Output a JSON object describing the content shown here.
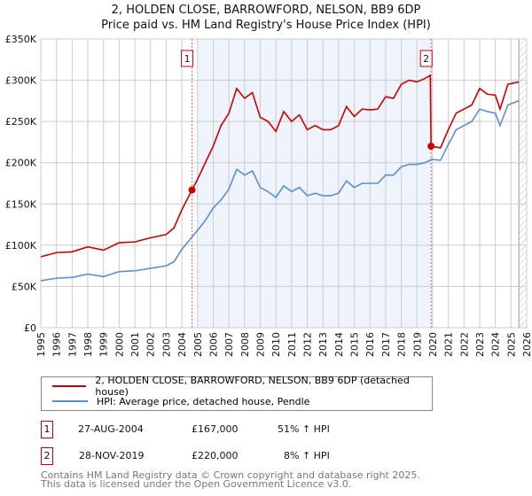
{
  "chart_data": {
    "type": "line",
    "title": "2, HOLDEN CLOSE, BARROWFORD, NELSON, BB9 6DP",
    "subtitle": "Price paid vs. HM Land Registry's House Price Index (HPI)",
    "xlabel": "",
    "ylabel": "",
    "xlim": [
      1995,
      2026
    ],
    "ylim": [
      0,
      350000
    ],
    "yticks": [
      {
        "v": 0,
        "label": "£0"
      },
      {
        "v": 50000,
        "label": "£50K"
      },
      {
        "v": 100000,
        "label": "£100K"
      },
      {
        "v": 150000,
        "label": "£150K"
      },
      {
        "v": 200000,
        "label": "£200K"
      },
      {
        "v": 250000,
        "label": "£250K"
      },
      {
        "v": 300000,
        "label": "£300K"
      },
      {
        "v": 350000,
        "label": "£350K"
      }
    ],
    "xticks": [
      "1995",
      "1996",
      "1997",
      "1998",
      "1999",
      "2000",
      "2001",
      "2002",
      "2003",
      "2004",
      "2005",
      "2006",
      "2007",
      "2008",
      "2009",
      "2010",
      "2011",
      "2012",
      "2013",
      "2014",
      "2015",
      "2016",
      "2017",
      "2018",
      "2019",
      "2020",
      "2021",
      "2022",
      "2023",
      "2024",
      "2025",
      "2026"
    ],
    "x": [
      1995,
      1996,
      1997,
      1998,
      1999,
      2000,
      2001,
      2002,
      2003,
      2003.5,
      2004,
      2004.65,
      2005,
      2005.5,
      2006,
      2006.5,
      2007,
      2007.5,
      2008,
      2008.5,
      2009,
      2009.5,
      2010,
      2010.5,
      2011,
      2011.5,
      2012,
      2012.5,
      2013,
      2013.5,
      2014,
      2014.5,
      2015,
      2015.5,
      2016,
      2016.5,
      2017,
      2017.5,
      2018,
      2018.5,
      2019,
      2019.5,
      2019.85,
      2019.9,
      2020.5,
      2021,
      2021.5,
      2022,
      2022.5,
      2023,
      2023.5,
      2024,
      2024.3,
      2024.8,
      2025.5
    ],
    "series": [
      {
        "name": "2, HOLDEN CLOSE, BARROWFORD, NELSON, BB9 6DP (detached house)",
        "color": "#cc0000",
        "values": [
          86000,
          91000,
          92000,
          98000,
          94000,
          103000,
          104000,
          109000,
          113000,
          121000,
          143000,
          167000,
          180000,
          200000,
          220000,
          245000,
          260000,
          290000,
          278000,
          285000,
          255000,
          250000,
          238000,
          262000,
          250000,
          258000,
          240000,
          245000,
          240000,
          240000,
          245000,
          268000,
          256000,
          265000,
          264000,
          265000,
          280000,
          278000,
          295000,
          300000,
          298000,
          302000,
          306000,
          220000,
          218000,
          240000,
          260000,
          265000,
          270000,
          290000,
          283000,
          282000,
          265000,
          295000,
          298000
        ]
      },
      {
        "name": "HPI: Average price, detached house, Pendle",
        "color": "#5b8fd4",
        "values": [
          57000,
          60000,
          61000,
          65000,
          62000,
          68000,
          69000,
          72000,
          75000,
          80000,
          95000,
          110000,
          118000,
          130000,
          145000,
          155000,
          168000,
          192000,
          185000,
          190000,
          170000,
          165000,
          158000,
          172000,
          165000,
          170000,
          160000,
          163000,
          160000,
          160000,
          163000,
          178000,
          170000,
          175000,
          175000,
          175000,
          185000,
          185000,
          195000,
          198000,
          198000,
          200000,
          203000,
          204000,
          203000,
          222000,
          240000,
          245000,
          250000,
          265000,
          262000,
          260000,
          245000,
          270000,
          275000
        ]
      }
    ],
    "annotations": [
      {
        "label": "1",
        "x": 2004.65,
        "y": 167000
      },
      {
        "label": "2",
        "x": 2019.9,
        "y": 220000
      }
    ],
    "shaded_range": [
      2005,
      2020
    ],
    "hatched_range": [
      2025.5,
      2026
    ],
    "grid": true,
    "legend": "bottom"
  },
  "transactions": [
    {
      "num": "1",
      "date": "27-AUG-2004",
      "price": "£167,000",
      "hpi": "51% ↑ HPI"
    },
    {
      "num": "2",
      "date": "28-NOV-2019",
      "price": "£220,000",
      "hpi": "8% ↑ HPI"
    }
  ],
  "footer": [
    "Contains HM Land Registry data © Crown copyright and database right 2025.",
    "This data is licensed under the Open Government Licence v3.0."
  ]
}
